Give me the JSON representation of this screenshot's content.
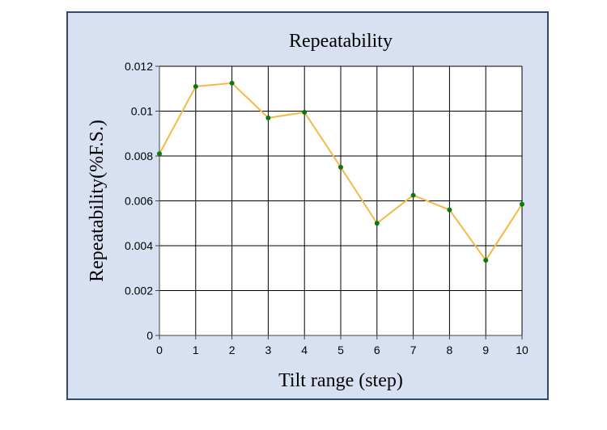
{
  "chart_data": {
    "type": "line",
    "title": "Repeatability",
    "xlabel": "Tilt range (step)",
    "ylabel": "Repeatability(%F.S.)",
    "x": [
      0,
      1,
      2,
      3,
      4,
      5,
      6,
      7,
      8,
      9,
      10
    ],
    "series": [
      {
        "values": [
          0.0081,
          0.0111,
          0.01125,
          0.0097,
          0.00995,
          0.0075,
          0.005,
          0.00625,
          0.0056,
          0.00335,
          0.00585
        ],
        "line_color": "#f5b942",
        "marker_color": "#0a7a10"
      }
    ],
    "xlim": [
      0,
      10
    ],
    "ylim": [
      0,
      0.012
    ],
    "x_ticks": [
      "0",
      "1",
      "2",
      "3",
      "4",
      "5",
      "6",
      "7",
      "8",
      "9",
      "10"
    ],
    "y_ticks": [
      "0",
      "0.002",
      "0.004",
      "0.006",
      "0.008",
      "0.01",
      "0.012"
    ],
    "grid": true,
    "background_color": "#d8e1f1",
    "plot_background_color": "#ffffff"
  }
}
